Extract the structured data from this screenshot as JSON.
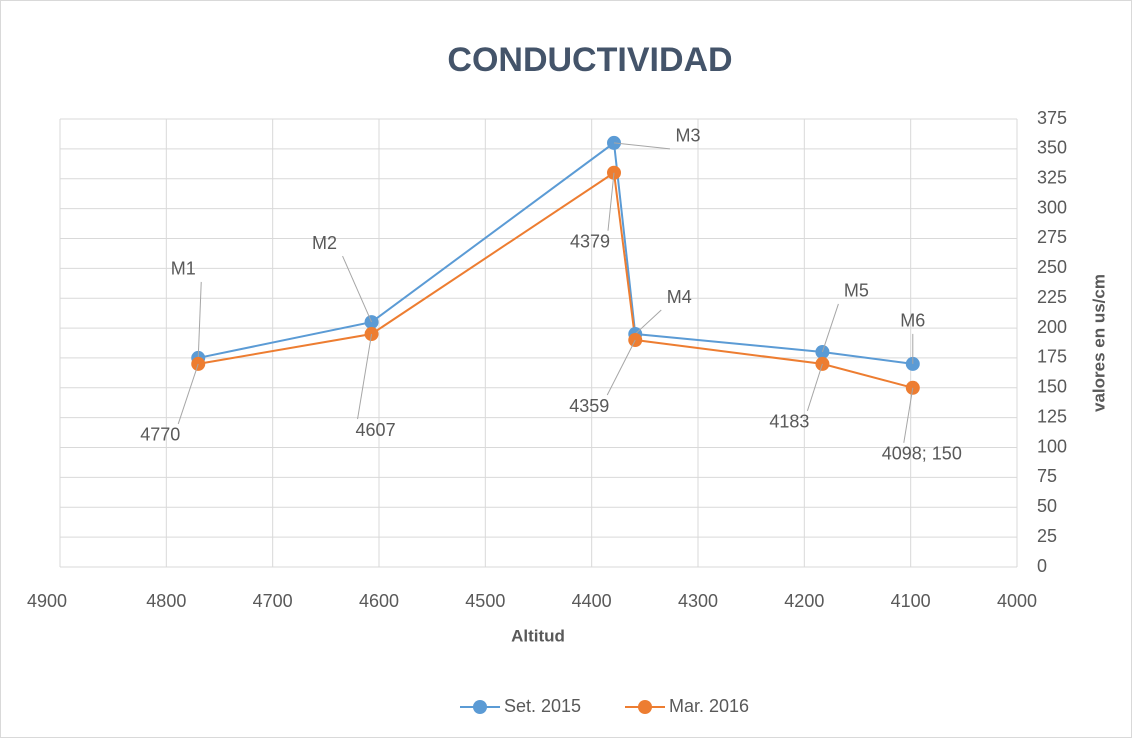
{
  "chart_data": {
    "type": "line",
    "title": "CONDUCTIVIDAD",
    "x_label": "Altitud",
    "y_label": "valores en us/cm",
    "x": [
      4770,
      4607,
      4379,
      4359,
      4183,
      4098
    ],
    "series": [
      {
        "name": "Set. 2015",
        "color": "#5b9bd5",
        "values": [
          175,
          205,
          355,
          195,
          180,
          170
        ],
        "labels": [
          "M1",
          "M2",
          "M3",
          "M4",
          "M5",
          "M6"
        ]
      },
      {
        "name": "Mar. 2016",
        "color": "#ed7d31",
        "values": [
          170,
          195,
          330,
          190,
          170,
          150
        ],
        "labels": [
          "4770",
          "4607",
          "4379",
          "4359",
          "4183",
          "4098; 150"
        ]
      }
    ],
    "xlim": [
      4900,
      4000
    ],
    "xticks": [
      4900,
      4800,
      4700,
      4600,
      4500,
      4400,
      4300,
      4200,
      4100,
      4000
    ],
    "ylim": [
      0,
      375
    ],
    "yticks": [
      0,
      25,
      50,
      75,
      100,
      125,
      150,
      175,
      200,
      225,
      250,
      275,
      300,
      325,
      350,
      375
    ],
    "y_axis_side": "right",
    "grid": true,
    "legend": "bottom"
  }
}
